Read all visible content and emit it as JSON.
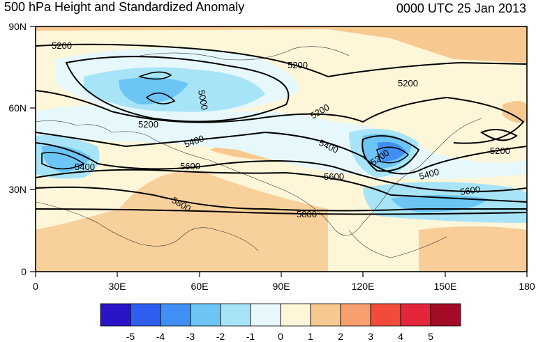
{
  "header": {
    "title": "500 hPa Height and Standardized Anomaly",
    "timestamp": "0000 UTC 25 Jan 2013"
  },
  "axes": {
    "lat_ticks": [
      "90N",
      "60N",
      "30N",
      "0"
    ],
    "lon_ticks": [
      "0",
      "30E",
      "60E",
      "90E",
      "120E",
      "150E",
      "180"
    ]
  },
  "contour_labels": [
    "5200",
    "5200",
    "5200",
    "5200",
    "5200",
    "5200",
    "5000",
    "5400",
    "5400",
    "5400",
    "5400",
    "5600",
    "5600",
    "5600",
    "5800",
    "5800",
    "5200"
  ],
  "colorbar": {
    "labels": [
      "-5",
      "-4",
      "-3",
      "-2",
      "-1",
      "0",
      "1",
      "2",
      "3",
      "4",
      "5"
    ],
    "colors": [
      "#2a14c8",
      "#2f5ff0",
      "#3f8ff5",
      "#6cc5f5",
      "#a8e4f7",
      "#e6f8fb",
      "#fdf6d8",
      "#f7c990",
      "#f7a06e",
      "#f24b3c",
      "#e4263a",
      "#a30b27"
    ]
  }
}
